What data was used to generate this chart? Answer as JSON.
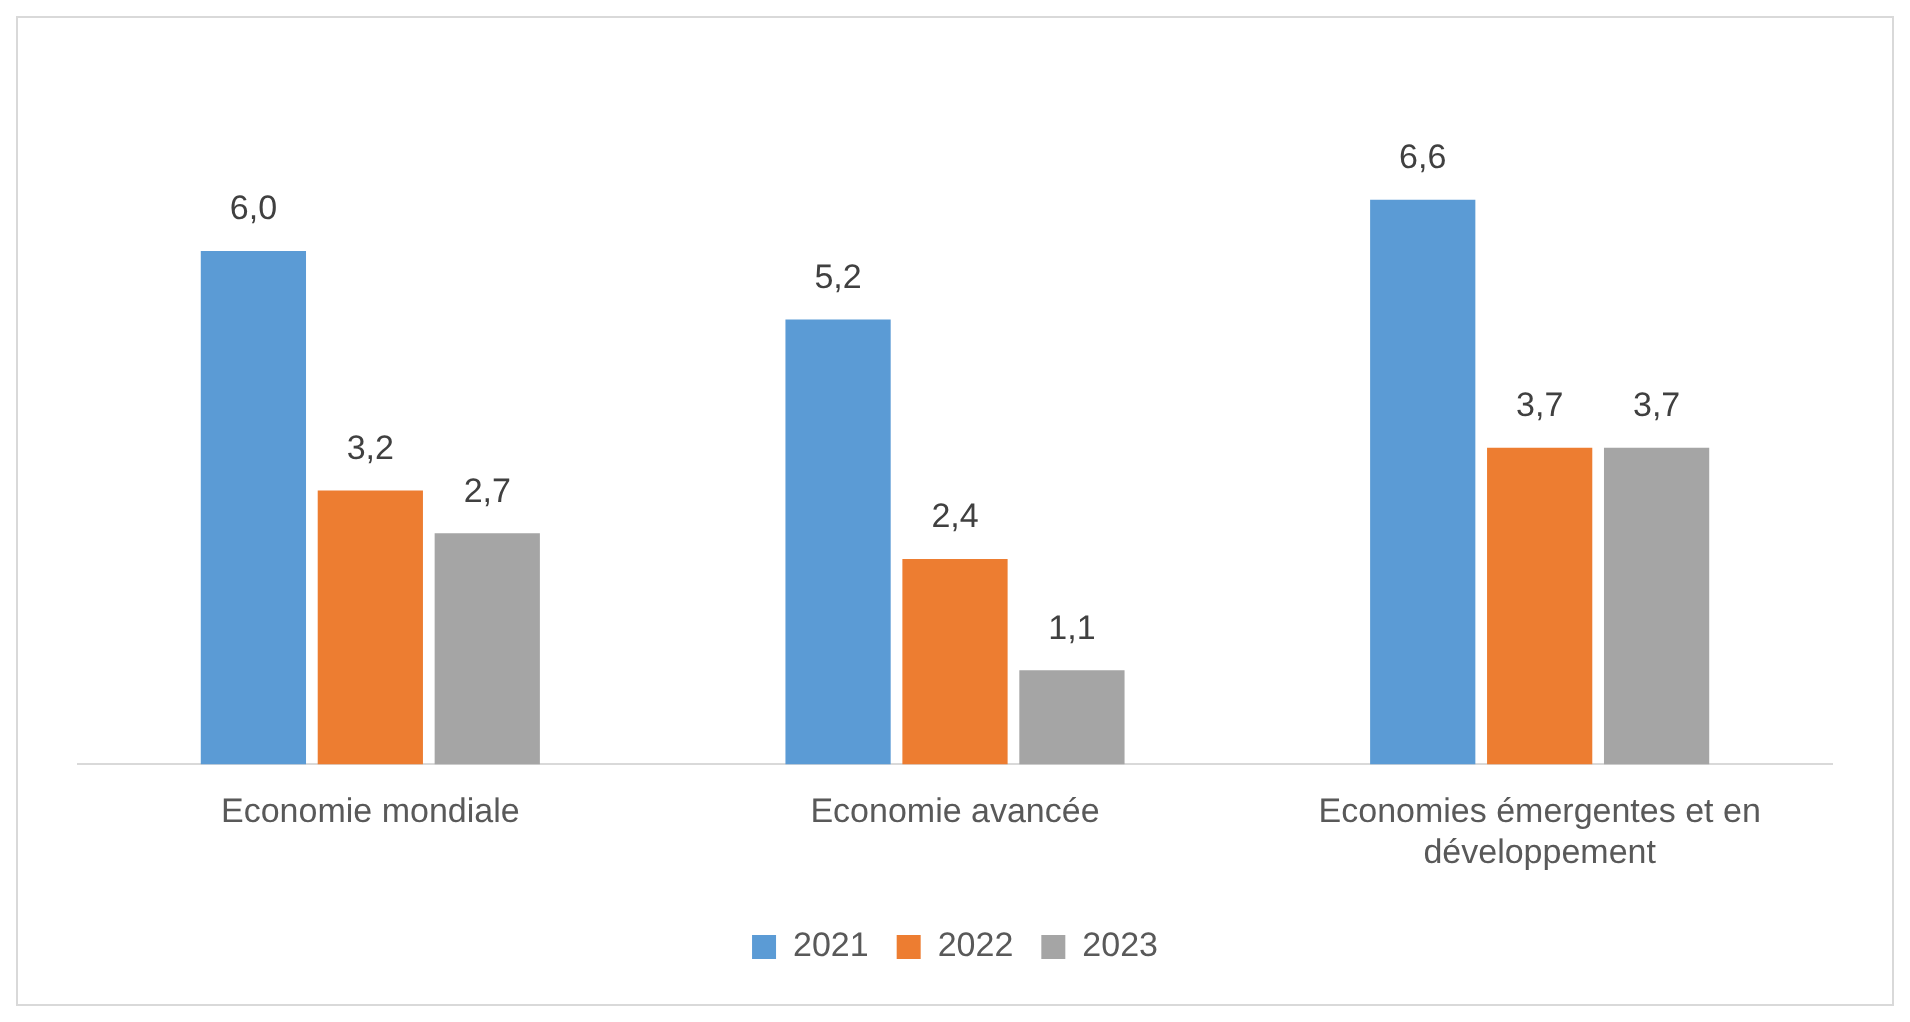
{
  "chart_data": {
    "type": "bar",
    "categories": [
      "Economie mondiale",
      "Economie avancée",
      "Economies émergentes et en développement"
    ],
    "series": [
      {
        "name": "2021",
        "color": "#5b9bd5",
        "values": [
          6.0,
          5.2,
          6.6
        ],
        "value_labels": [
          "6,0",
          "5,2",
          "6,6"
        ]
      },
      {
        "name": "2022",
        "color": "#ed7d31",
        "values": [
          3.2,
          2.4,
          3.7
        ],
        "value_labels": [
          "3,2",
          "2,4",
          "3,7"
        ]
      },
      {
        "name": "2023",
        "color": "#a5a5a5",
        "values": [
          2.7,
          1.1,
          3.7
        ],
        "value_labels": [
          "2,7",
          "1,1",
          "3,7"
        ]
      }
    ],
    "grid": false,
    "legend": "bottom"
  }
}
